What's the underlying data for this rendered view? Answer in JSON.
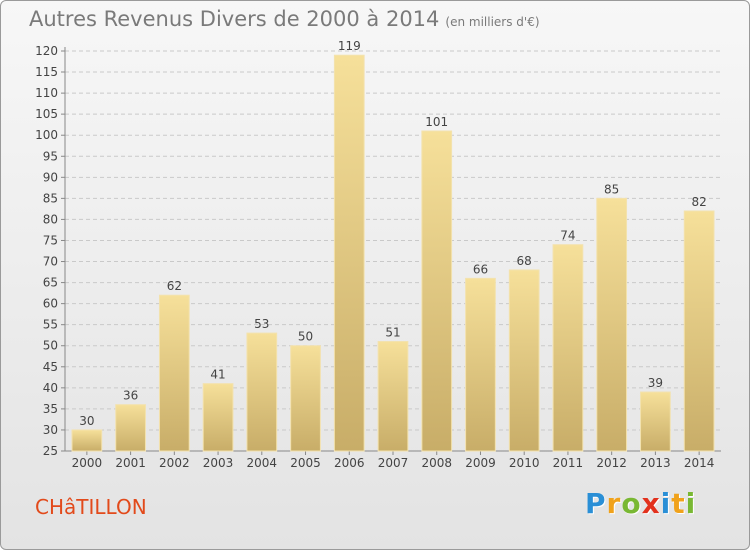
{
  "title": "Autres Revenus Divers de 2000 à 2014",
  "subtitle": "(en milliers d'€)",
  "city": "CHâTILLON",
  "logo": [
    "P",
    "r",
    "o",
    "x",
    "i",
    "t",
    "i"
  ],
  "logo_colors": [
    "#2a8fd6",
    "#f0a21b",
    "#79b833",
    "#e2311d",
    "#2a8fd6",
    "#f0a21b",
    "#79b833"
  ],
  "chart_data": {
    "type": "bar",
    "title": "Autres Revenus Divers de 2000 à 2014",
    "subtitle": "(en milliers d'€)",
    "categories": [
      "2000",
      "2001",
      "2002",
      "2003",
      "2004",
      "2005",
      "2006",
      "2007",
      "2008",
      "2009",
      "2010",
      "2011",
      "2012",
      "2013",
      "2014"
    ],
    "values": [
      30,
      36,
      62,
      41,
      53,
      50,
      119,
      51,
      101,
      66,
      68,
      74,
      85,
      39,
      82
    ],
    "ylim": [
      25,
      120
    ],
    "yticks": [
      25,
      30,
      35,
      40,
      45,
      50,
      55,
      60,
      65,
      70,
      75,
      80,
      85,
      90,
      95,
      100,
      105,
      110,
      115,
      120
    ],
    "grid": true,
    "bar_color": "#e9cf85"
  }
}
